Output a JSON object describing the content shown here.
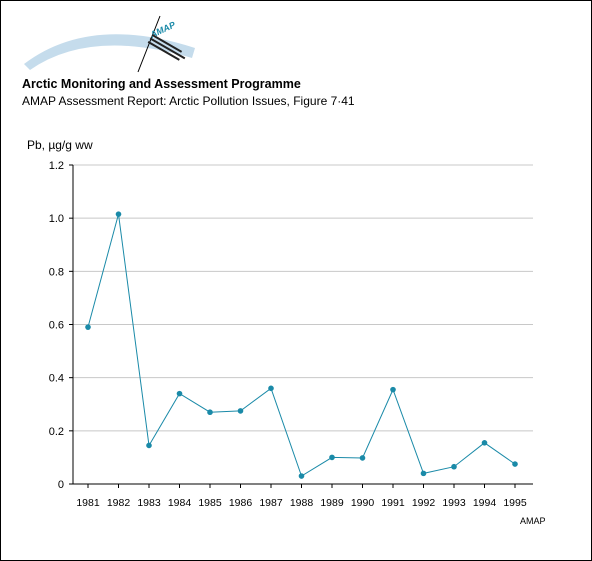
{
  "header": {
    "logo_text": "AMAP",
    "title": "Arctic Monitoring and Assessment Programme",
    "subtitle": "AMAP Assessment Report: Arctic Pollution Issues, Figure 7·41"
  },
  "footer": {
    "credit": "AMAP"
  },
  "colors": {
    "series": "#1a8aa8",
    "grid": "#c8c8c8",
    "axis": "#000000",
    "logo_arc": "#c5dcec"
  },
  "chart_data": {
    "type": "line",
    "title": "",
    "xlabel": "",
    "ylabel": "Pb, µg/g ww",
    "ylim": [
      0,
      1.2
    ],
    "yticks": [
      "0",
      "0.2",
      "0.4",
      "0.6",
      "0.8",
      "1.0",
      "1.2"
    ],
    "grid": true,
    "categories": [
      "1981",
      "1982",
      "1983",
      "1984",
      "1985",
      "1986",
      "1987",
      "1988",
      "1989",
      "1990",
      "1991",
      "1992",
      "1993",
      "1994",
      "1995"
    ],
    "series": [
      {
        "values": [
          0.59,
          1.015,
          0.145,
          0.34,
          0.27,
          0.275,
          0.36,
          0.03,
          0.1,
          0.098,
          0.355,
          0.04,
          0.065,
          0.155,
          0.075
        ]
      }
    ]
  }
}
